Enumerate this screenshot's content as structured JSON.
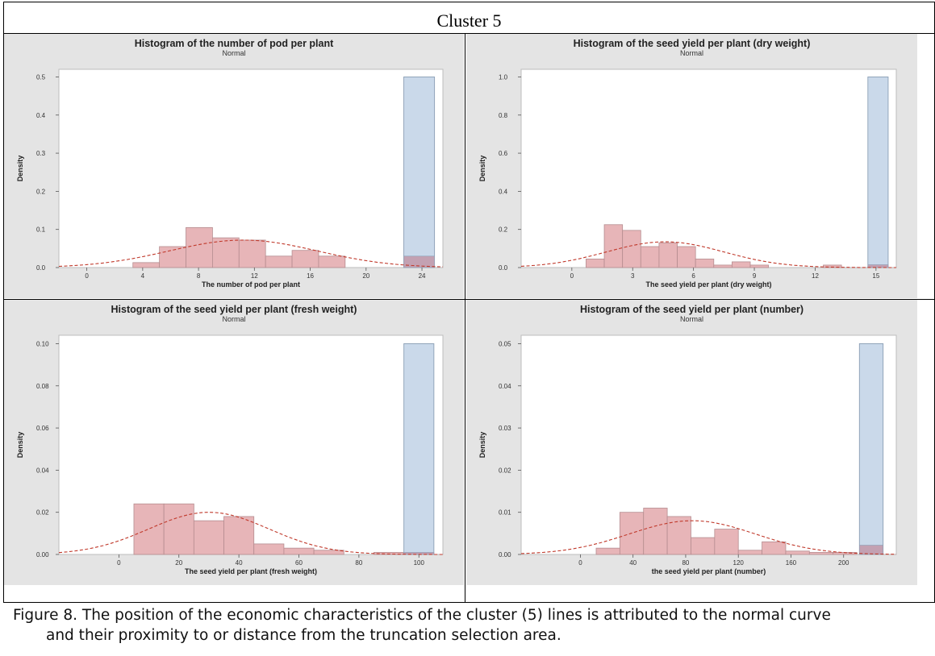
{
  "table": {
    "header": "Cluster 5"
  },
  "caption": {
    "line1": "Figure 8. The position of the economic characteristics of the cluster (5) lines is attributed to the normal curve",
    "line2": "and their proximity to or distance from the truncation selection area."
  },
  "colors": {
    "panel_bg": "#e4e4e4",
    "plot_bg": "#ffffff",
    "hist_fill": "#e7b5b8",
    "hist_stroke": "#b58d90",
    "truncation_fill": "#cad9ea",
    "truncation_stroke": "#8b9fb5",
    "overlap_fill": "#c3a1b2",
    "curve": "#c0392b"
  },
  "chart_data": [
    {
      "type": "bar",
      "title": "Histogram of the number of pod per plant",
      "subtitle": "Normal",
      "xlabel": "The number of pod per plant",
      "ylabel": "Density",
      "xlim": [
        -2,
        25.5
      ],
      "ylim": [
        0,
        0.52
      ],
      "xticks": [
        0,
        4,
        8,
        12,
        16,
        20,
        24
      ],
      "yticks": [
        0.0,
        0.1,
        0.2,
        0.3,
        0.4,
        0.5
      ],
      "ytick_decimals": 1,
      "bin_edges": [
        3.3,
        5.2,
        7.1,
        9.0,
        10.9,
        12.8,
        14.7,
        16.6,
        18.5,
        20.4,
        22.3
      ],
      "densities": [
        0.013,
        0.055,
        0.105,
        0.078,
        0.072,
        0.03,
        0.045,
        0.03,
        0.0,
        0.0
      ],
      "curve": {
        "mean": 11.2,
        "sd": 5.3,
        "peak": 0.072
      },
      "truncation": {
        "x0": 22.7,
        "x1": 24.9,
        "density": 0.5,
        "overlap_density": 0.03
      }
    },
    {
      "type": "bar",
      "title": "Histogram of the seed yield per plant (dry weight)",
      "subtitle": "Normal",
      "xlabel": "The seed yield per plant (dry weight)",
      "ylabel": "Density",
      "xlim": [
        -2.5,
        16
      ],
      "ylim": [
        0,
        1.04
      ],
      "xticks": [
        0,
        3,
        6,
        9,
        12,
        15
      ],
      "yticks": [
        0.0,
        0.2,
        0.4,
        0.6,
        0.8,
        1.0
      ],
      "ytick_decimals": 1,
      "bin_edges": [
        0.7,
        1.6,
        2.5,
        3.4,
        4.3,
        5.2,
        6.1,
        7.0,
        7.9,
        8.8,
        9.7,
        10.6,
        11.5,
        12.4,
        13.3
      ],
      "densities": [
        0.045,
        0.225,
        0.195,
        0.11,
        0.13,
        0.11,
        0.045,
        0.013,
        0.03,
        0.013,
        0.0,
        0.0,
        0.0,
        0.013
      ],
      "curve": {
        "mean": 4.6,
        "sd": 2.9,
        "peak": 0.135
      },
      "truncation": {
        "x0": 14.6,
        "x1": 15.6,
        "density": 1.0,
        "overlap_density": 0.015
      }
    },
    {
      "type": "bar",
      "title": "Histogram of the seed yield per plant (fresh weight)",
      "subtitle": "Normal",
      "xlabel": "The seed yield per plant (fresh weight)",
      "ylabel": "Density",
      "xlim": [
        -20,
        108
      ],
      "ylim": [
        0,
        0.104
      ],
      "xticks": [
        0,
        20,
        40,
        60,
        80,
        100
      ],
      "yticks": [
        0.0,
        0.02,
        0.04,
        0.06,
        0.08,
        0.1
      ],
      "ytick_decimals": 2,
      "bin_edges": [
        5,
        15,
        25,
        35,
        45,
        55,
        65,
        75,
        85,
        95
      ],
      "densities": [
        0.024,
        0.024,
        0.016,
        0.018,
        0.005,
        0.003,
        0.002,
        0.0,
        0.001
      ],
      "curve": {
        "mean": 30,
        "sd": 20,
        "peak": 0.02
      },
      "truncation": {
        "x0": 95,
        "x1": 105,
        "density": 0.1,
        "overlap_density": 0.001
      }
    },
    {
      "type": "bar",
      "title": "Histogram of the seed yield per plant (number)",
      "subtitle": "Normal",
      "xlabel": "the seed yield per plant (number)",
      "ylabel": "Density",
      "xlim": [
        -45,
        240
      ],
      "ylim": [
        0,
        0.052
      ],
      "xticks": [
        0,
        40,
        80,
        120,
        160,
        200
      ],
      "yticks": [
        0.0,
        0.01,
        0.02,
        0.03,
        0.04,
        0.05
      ],
      "ytick_decimals": 2,
      "bin_edges": [
        12,
        30,
        48,
        66,
        84,
        102,
        120,
        138,
        156,
        174,
        192,
        210
      ],
      "densities": [
        0.0015,
        0.01,
        0.011,
        0.009,
        0.004,
        0.006,
        0.001,
        0.003,
        0.0008,
        0.0005,
        0.0005
      ],
      "curve": {
        "mean": 85,
        "sd": 48,
        "peak": 0.008
      },
      "truncation": {
        "x0": 212,
        "x1": 230,
        "density": 0.05,
        "overlap_density": 0.0022
      }
    }
  ]
}
